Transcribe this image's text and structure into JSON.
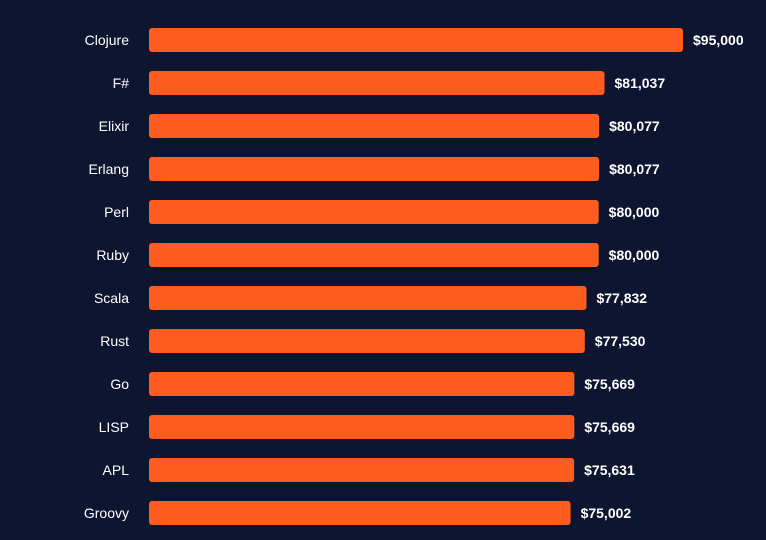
{
  "colors": {
    "background": "#0d1530",
    "bar": "#ff5c1f",
    "text": "#ffffff"
  },
  "chart_data": {
    "type": "bar",
    "orientation": "horizontal",
    "title": "",
    "xlabel": "",
    "ylabel": "",
    "grid": false,
    "legend": "none",
    "xlim": [
      0,
      95000
    ],
    "categories": [
      "Clojure",
      "F#",
      "Elixir",
      "Erlang",
      "Perl",
      "Ruby",
      "Scala",
      "Rust",
      "Go",
      "LISP",
      "APL",
      "Groovy"
    ],
    "values": [
      95000,
      81037,
      80077,
      80077,
      80000,
      80000,
      77832,
      77530,
      75669,
      75669,
      75631,
      75002
    ],
    "value_labels": [
      "$95,000",
      "$81,037",
      "$80,077",
      "$80,077",
      "$80,000",
      "$80,000",
      "$77,832",
      "$77,530",
      "$75,669",
      "$75,669",
      "$75,631",
      "$75,002"
    ]
  }
}
